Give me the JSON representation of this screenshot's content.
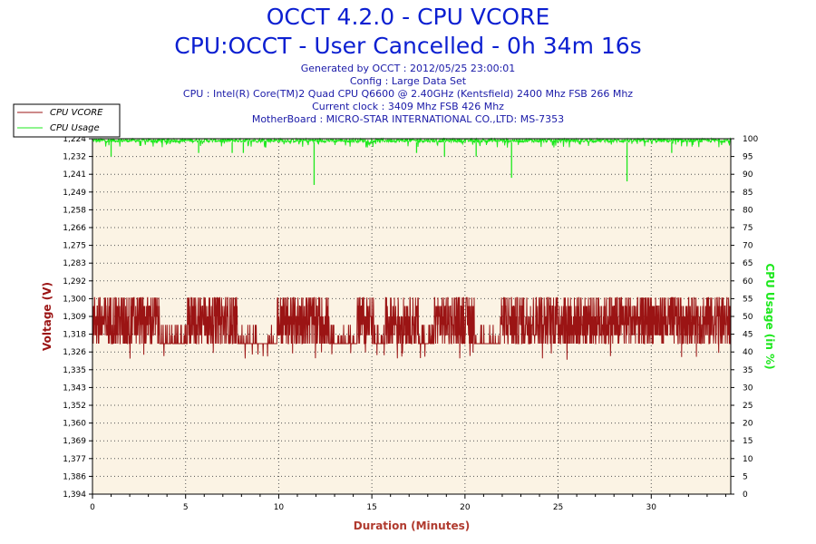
{
  "header": {
    "title": "OCCT 4.2.0 - CPU VCORE",
    "subtitle": "CPU:OCCT - User Cancelled - 0h 34m 16s",
    "info": [
      "Generated by OCCT : 2012/05/25 23:00:01",
      "Config : Large Data Set",
      "CPU : Intel(R) Core(TM)2 Quad CPU Q6600 @ 2.40GHz (Kentsfield) 2400 Mhz FSB 266 Mhz",
      "Current clock : 3409 Mhz FSB 426 Mhz",
      "MotherBoard : MICRO-STAR INTERNATIONAL CO.,LTD: MS-7353"
    ]
  },
  "colors": {
    "plot_bg": "#fbf3e4",
    "grid": "#555555",
    "vcore": "#9b1414",
    "usage": "#1de81d",
    "title": "#0b1fd1",
    "xlabel": "#b03a2e"
  },
  "chart_data": {
    "type": "line",
    "title": "OCCT 4.2.0 - CPU VCORE",
    "xlabel": "Duration (Minutes)",
    "ylabel": "Voltage (V)",
    "y2label": "CPU Usage (in %)",
    "xlim": [
      0,
      34.27
    ],
    "xticks": [
      0,
      5,
      10,
      15,
      20,
      25,
      30
    ],
    "ylim": [
      1.224,
      1.394
    ],
    "yticks": [
      "1,394",
      "1,386",
      "1,377",
      "1,369",
      "1,360",
      "1,352",
      "1,343",
      "1,335",
      "1,326",
      "1,318",
      "1,309",
      "1,300",
      "1,292",
      "1,283",
      "1,275",
      "1,266",
      "1,258",
      "1,249",
      "1,241",
      "1,232",
      "1,224"
    ],
    "y2lim": [
      0,
      100
    ],
    "y2ticks": [
      0,
      5,
      10,
      15,
      20,
      25,
      30,
      35,
      40,
      45,
      50,
      55,
      60,
      65,
      70,
      75,
      80,
      85,
      90,
      95,
      100
    ],
    "grid": true,
    "legend_position": "top-left",
    "series": [
      {
        "name": "CPU VCORE",
        "axis": "left",
        "value_levels": [
          1.296,
          1.3,
          1.305,
          1.309,
          1.314,
          1.318
        ],
        "typical_range": [
          1.296,
          1.318
        ],
        "min": 1.288,
        "max": 1.32,
        "low_segments": [
          [
            3.6,
            5.1
          ],
          [
            7.8,
            9.9
          ],
          [
            12.7,
            14.2
          ],
          [
            15.1,
            15.7
          ],
          [
            17.5,
            18.3
          ],
          [
            20.5,
            21.9
          ]
        ]
      },
      {
        "name": "CPU Usage",
        "axis": "right",
        "typical_value": 99,
        "dips": [
          {
            "x": 1.0,
            "y": 95
          },
          {
            "x": 5.7,
            "y": 96
          },
          {
            "x": 7.5,
            "y": 96
          },
          {
            "x": 8.1,
            "y": 96
          },
          {
            "x": 11.9,
            "y": 87
          },
          {
            "x": 17.4,
            "y": 96
          },
          {
            "x": 18.9,
            "y": 95
          },
          {
            "x": 20.6,
            "y": 95
          },
          {
            "x": 22.5,
            "y": 89
          },
          {
            "x": 28.7,
            "y": 88
          },
          {
            "x": 31.1,
            "y": 96
          }
        ]
      }
    ]
  }
}
